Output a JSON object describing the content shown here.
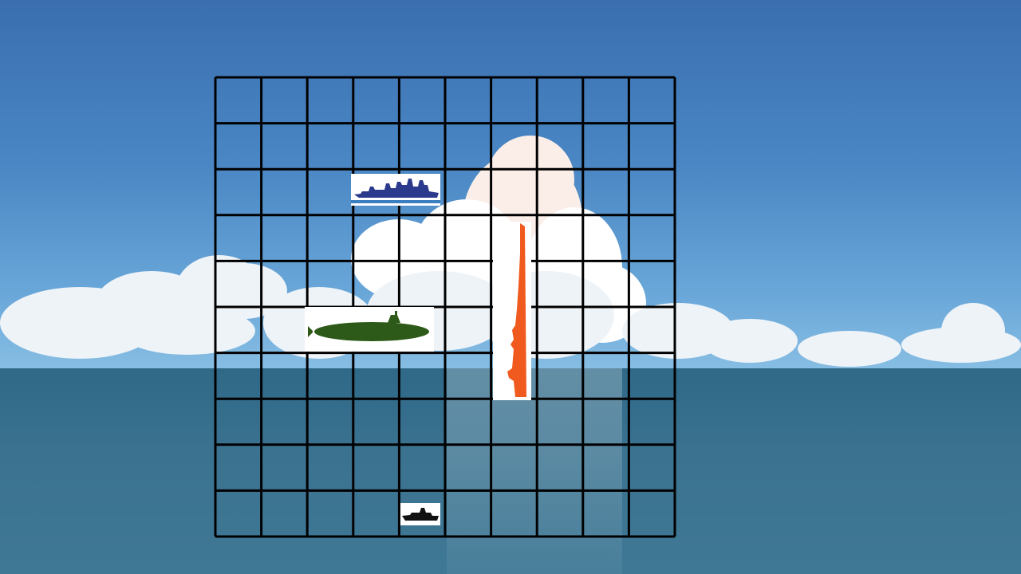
{
  "game": {
    "board": {
      "rows": 10,
      "cols": 10
    },
    "ships": [
      {
        "id": "cruiser",
        "color": "#2b3a8c",
        "orientation": "horizontal",
        "row": 2,
        "col": 3,
        "length": 2
      },
      {
        "id": "submarine",
        "color": "#2d5a18",
        "orientation": "horizontal",
        "row": 5,
        "col": 2,
        "length": 3
      },
      {
        "id": "carrier",
        "color": "#f05a1e",
        "orientation": "vertical",
        "row": 3,
        "col": 6,
        "length": 4
      },
      {
        "id": "patrol-boat",
        "color": "#111111",
        "orientation": "horizontal",
        "row": 9,
        "col": 4,
        "length": 1
      }
    ]
  }
}
